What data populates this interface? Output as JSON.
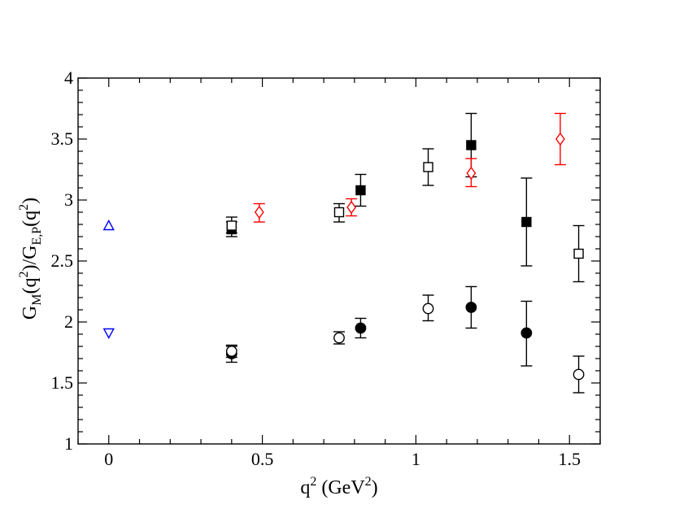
{
  "chart_data": {
    "type": "scatter",
    "title": "",
    "xlabel": "q2 (GeV2)",
    "ylabel": "GM(q2)/GE,P(q2)",
    "xlim": [
      -0.1,
      1.6
    ],
    "ylim": [
      1,
      4
    ],
    "x_ticks": [
      0,
      0.5,
      1,
      1.5
    ],
    "x_tick_labels": [
      "0",
      "0.5",
      "1",
      "1.5"
    ],
    "y_ticks": [
      1,
      1.5,
      2,
      2.5,
      3,
      3.5,
      4
    ],
    "y_tick_labels": [
      "1",
      "1.5",
      "2",
      "2.5",
      "3",
      "3.5",
      "4"
    ],
    "grid": false,
    "legend": "none",
    "series": [
      {
        "name": "filled squares",
        "marker": "square",
        "filled": true,
        "color": "#000000",
        "points": [
          {
            "x": 0.4,
            "y": 2.76,
            "lo": 2.7,
            "hi": 2.82
          },
          {
            "x": 0.82,
            "y": 3.08,
            "lo": 2.95,
            "hi": 3.21
          },
          {
            "x": 1.18,
            "y": 3.45,
            "lo": 3.19,
            "hi": 3.71
          },
          {
            "x": 1.36,
            "y": 2.82,
            "lo": 2.46,
            "hi": 3.18
          }
        ]
      },
      {
        "name": "open squares",
        "marker": "square",
        "filled": false,
        "color": "#000000",
        "points": [
          {
            "x": 0.4,
            "y": 2.79,
            "lo": 2.73,
            "hi": 2.86
          },
          {
            "x": 0.75,
            "y": 2.9,
            "lo": 2.82,
            "hi": 2.97
          },
          {
            "x": 1.04,
            "y": 3.27,
            "lo": 3.12,
            "hi": 3.42
          },
          {
            "x": 1.53,
            "y": 2.56,
            "lo": 2.33,
            "hi": 2.79
          }
        ]
      },
      {
        "name": "red diamonds",
        "marker": "diamond",
        "filled": false,
        "color": "#ff0000",
        "points": [
          {
            "x": 0.49,
            "y": 2.9,
            "lo": 2.82,
            "hi": 2.97
          },
          {
            "x": 0.79,
            "y": 2.94,
            "lo": 2.87,
            "hi": 3.01
          },
          {
            "x": 1.18,
            "y": 3.22,
            "lo": 3.11,
            "hi": 3.34
          },
          {
            "x": 1.47,
            "y": 3.5,
            "lo": 3.29,
            "hi": 3.71
          }
        ]
      },
      {
        "name": "filled circles",
        "marker": "circle",
        "filled": true,
        "color": "#000000",
        "points": [
          {
            "x": 0.4,
            "y": 1.74,
            "lo": 1.67,
            "hi": 1.8
          },
          {
            "x": 0.82,
            "y": 1.95,
            "lo": 1.87,
            "hi": 2.03
          },
          {
            "x": 1.18,
            "y": 2.12,
            "lo": 1.95,
            "hi": 2.29
          },
          {
            "x": 1.36,
            "y": 1.91,
            "lo": 1.64,
            "hi": 2.17
          }
        ]
      },
      {
        "name": "open circles",
        "marker": "circle",
        "filled": false,
        "color": "#000000",
        "points": [
          {
            "x": 0.4,
            "y": 1.76,
            "lo": 1.71,
            "hi": 1.81
          },
          {
            "x": 0.75,
            "y": 1.87,
            "lo": 1.82,
            "hi": 1.92
          },
          {
            "x": 1.04,
            "y": 2.11,
            "lo": 2.01,
            "hi": 2.22
          },
          {
            "x": 1.53,
            "y": 1.57,
            "lo": 1.42,
            "hi": 1.72
          }
        ]
      },
      {
        "name": "blue up triangle",
        "marker": "triangle-up",
        "filled": false,
        "color": "#0000ff",
        "points": [
          {
            "x": 0.0,
            "y": 2.79
          }
        ]
      },
      {
        "name": "blue down triangle",
        "marker": "triangle-down",
        "filled": false,
        "color": "#0000ff",
        "points": [
          {
            "x": 0.0,
            "y": 1.91
          }
        ]
      }
    ]
  }
}
